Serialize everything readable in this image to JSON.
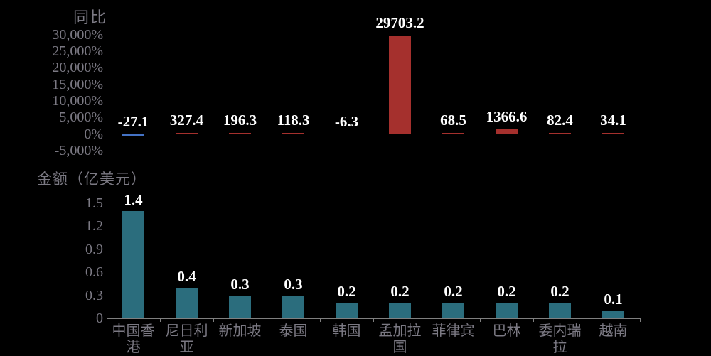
{
  "page": {
    "background": "#000000"
  },
  "colors": {
    "positive_bar": "#a5302d",
    "negative_bar": "#4472c4",
    "amount_bar": "#2b6d7d",
    "axis": "#7f7f7f",
    "tick_text": "#7b7983",
    "category_text": "#7b7983",
    "title_text": "#7b7983",
    "value_text": "#ffffff",
    "value_outline": "#000000"
  },
  "chart_data": [
    {
      "type": "bar",
      "title": "同比",
      "unit": "%",
      "categories": [
        "中国香港",
        "尼日利亚",
        "新加坡",
        "泰国",
        "韩国",
        "孟加拉国",
        "菲律宾",
        "巴林",
        "委内瑞拉",
        "越南"
      ],
      "values": [
        -27.1,
        327.4,
        196.3,
        118.3,
        -6.3,
        29703.2,
        68.5,
        1366.6,
        82.4,
        34.1
      ],
      "value_labels": [
        "-27.1",
        "327.4",
        "196.3",
        "118.3",
        "-6.3",
        "29703.2",
        "68.5",
        "1366.6",
        "82.4",
        "34.1"
      ],
      "yticks": [
        {
          "label": "30,000%",
          "value": 30000
        },
        {
          "label": "25,000%",
          "value": 25000
        },
        {
          "label": "20,000%",
          "value": 20000
        },
        {
          "label": "15,000%",
          "value": 15000
        },
        {
          "label": "10,000%",
          "value": 10000
        },
        {
          "label": "5,000%",
          "value": 5000
        },
        {
          "label": "0%",
          "value": 0
        },
        {
          "label": "-5,000%",
          "value": -5000
        }
      ],
      "ylim": [
        -5000,
        30000
      ],
      "grid": false,
      "legend": "none",
      "color_rule": "positive bars red, negative bars blue",
      "show_category_labels": false
    },
    {
      "type": "bar",
      "title": "金额（亿美元）",
      "unit": "亿美元",
      "categories": [
        "中国香港",
        "尼日利亚",
        "新加坡",
        "泰国",
        "韩国",
        "孟加拉国",
        "菲律宾",
        "巴林",
        "委内瑞拉",
        "越南"
      ],
      "values": [
        1.4,
        0.4,
        0.3,
        0.3,
        0.2,
        0.2,
        0.2,
        0.2,
        0.2,
        0.1
      ],
      "value_labels": [
        "1.4",
        "0.4",
        "0.3",
        "0.3",
        "0.2",
        "0.2",
        "0.2",
        "0.2",
        "0.2",
        "0.1"
      ],
      "yticks": [
        {
          "label": "1.5",
          "value": 1.5
        },
        {
          "label": "1.2",
          "value": 1.2
        },
        {
          "label": "0.9",
          "value": 0.9
        },
        {
          "label": "0.6",
          "value": 0.6
        },
        {
          "label": "0.3",
          "value": 0.3
        },
        {
          "label": "0",
          "value": 0
        }
      ],
      "ylim": [
        0,
        1.5
      ],
      "grid": false,
      "legend": "none",
      "show_category_labels": true
    }
  ]
}
